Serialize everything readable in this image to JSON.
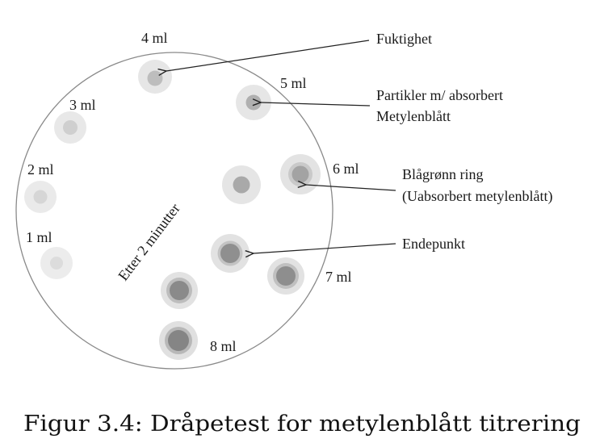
{
  "labels": {
    "ml1": "1 ml",
    "ml2": "2 ml",
    "ml3": "3 ml",
    "ml4": "4 ml",
    "ml5": "5 ml",
    "ml6": "6 ml",
    "ml7": "7 ml",
    "ml8": "8 ml",
    "after": "Etter 2 minutter"
  },
  "annotations": {
    "moisture": "Fuktighet",
    "particles_line1": "Partikler m/ absorbert",
    "particles_line2": "Metylenblått",
    "ring_line1": "Blågrønn ring",
    "ring_line2": "(Uabsorbert metylenblått)",
    "endpoint": "Endepunkt"
  },
  "caption": "Figur 3.4: Dråpetest for metylenblått titrering"
}
